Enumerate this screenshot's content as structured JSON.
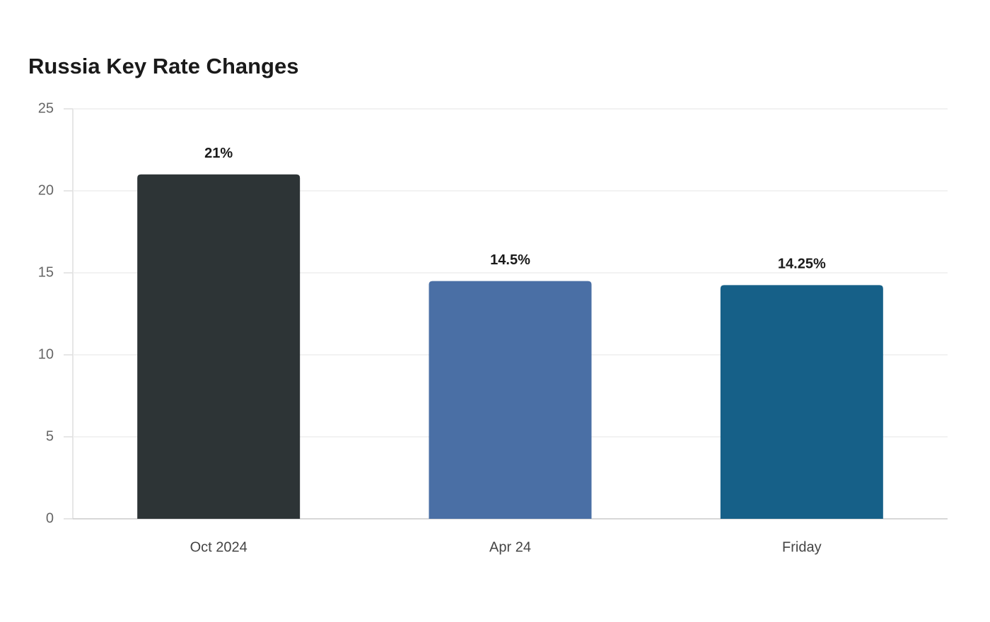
{
  "chart_data": {
    "type": "bar",
    "title": "Russia Key Rate Changes",
    "categories": [
      "Oct 2024",
      "Apr 24",
      "Friday"
    ],
    "values": [
      21,
      14.5,
      14.25
    ],
    "value_labels": [
      "21%",
      "14.5%",
      "14.25%"
    ],
    "colors": [
      "#2d3436",
      "#4a6fa5",
      "#166088"
    ],
    "ylim": [
      0,
      25
    ],
    "yticks": [
      0,
      5,
      10,
      15,
      20,
      25
    ],
    "grid": true
  }
}
